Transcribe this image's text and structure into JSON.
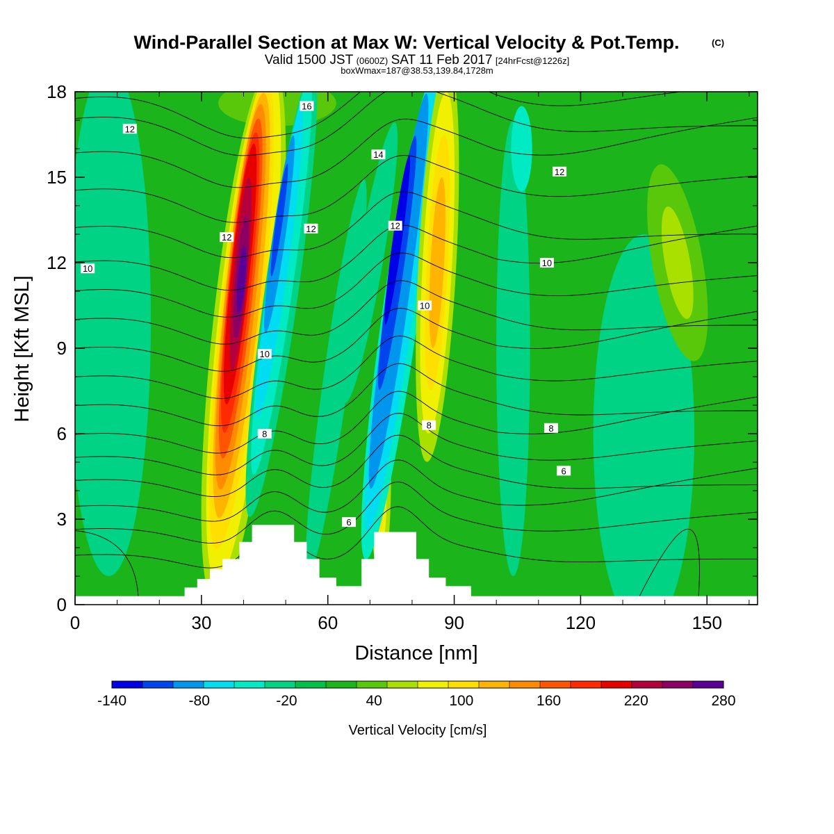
{
  "chart_data": {
    "type": "heatmap",
    "title": "Wind-Parallel Section at Max W: Vertical Velocity & Pot.Temp.",
    "title_mark": "(C)",
    "subtitle": {
      "a": "Valid 1500 JST",
      "b": "(0600Z)",
      "c": "SAT 11 Feb 2017",
      "d": "[24hrFcst@1226z]"
    },
    "info": "boxWmax=187@38.53,139.84,1728m",
    "xlabel": "Distance [nm]",
    "ylabel": "Height [Kft MSL]",
    "xlim": [
      0,
      162
    ],
    "ylim": [
      0,
      18
    ],
    "x_ticks": [
      0,
      30,
      60,
      90,
      120,
      150
    ],
    "y_ticks": [
      0,
      3,
      6,
      9,
      12,
      15,
      18
    ],
    "colorbar": {
      "label": "Vertical Velocity [cm/s]",
      "levels": [
        -140,
        -120,
        -100,
        -80,
        -60,
        -40,
        -20,
        0,
        20,
        40,
        60,
        80,
        100,
        120,
        140,
        160,
        180,
        200,
        220,
        240,
        260,
        280
      ],
      "tick_labels": [
        "-140",
        "-80",
        "-20",
        "40",
        "100",
        "160",
        "220",
        "280"
      ],
      "colors": [
        "#0000e6",
        "#0044ee",
        "#0096ee",
        "#00dcf0",
        "#00eac4",
        "#00d484",
        "#00c048",
        "#1bb41b",
        "#5ac80a",
        "#aae000",
        "#f0f000",
        "#ffdf00",
        "#ffb400",
        "#ff8c00",
        "#ff5500",
        "#ff2a00",
        "#e60000",
        "#b4003c",
        "#8c0064",
        "#5a0096"
      ]
    },
    "series": [
      {
        "name": "Vertical Velocity",
        "units": "cm/s",
        "features": [
          {
            "x": 39,
            "y": 11,
            "peak": 280
          },
          {
            "x": 49,
            "y": 13,
            "peak": -140
          },
          {
            "x": 73,
            "y": 4,
            "peak": 80
          },
          {
            "x": 76,
            "y": 13,
            "peak": -140
          },
          {
            "x": 86,
            "y": 11,
            "peak": 100
          },
          {
            "x": 143,
            "y": 12,
            "peak": 40
          }
        ]
      },
      {
        "name": "Pot.Temp.",
        "contour_labels": [
          {
            "x": 13,
            "y": 16.7,
            "text": "12"
          },
          {
            "x": 55,
            "y": 17.5,
            "text": "16"
          },
          {
            "x": 72,
            "y": 15.8,
            "text": "14"
          },
          {
            "x": 115,
            "y": 15.2,
            "text": "12"
          },
          {
            "x": 36,
            "y": 12.9,
            "text": "12"
          },
          {
            "x": 56,
            "y": 13.2,
            "text": "12"
          },
          {
            "x": 76,
            "y": 13.3,
            "text": "12"
          },
          {
            "x": 3,
            "y": 11.8,
            "text": "10"
          },
          {
            "x": 112,
            "y": 12,
            "text": "10"
          },
          {
            "x": 83,
            "y": 10.5,
            "text": "10"
          },
          {
            "x": 45,
            "y": 8.8,
            "text": "10"
          },
          {
            "x": 45,
            "y": 6,
            "text": "8"
          },
          {
            "x": 84,
            "y": 6.3,
            "text": "8"
          },
          {
            "x": 113,
            "y": 6.2,
            "text": "8"
          },
          {
            "x": 116,
            "y": 4.7,
            "text": "6"
          },
          {
            "x": 65,
            "y": 2.9,
            "text": "6"
          }
        ]
      }
    ],
    "terrain_heights": [
      {
        "x": 0,
        "h": 0.3
      },
      {
        "x": 26,
        "h": 0.3
      },
      {
        "x": 26,
        "h": 0.6
      },
      {
        "x": 29,
        "h": 0.6
      },
      {
        "x": 29,
        "h": 0.9
      },
      {
        "x": 32,
        "h": 0.9
      },
      {
        "x": 32,
        "h": 1.25
      },
      {
        "x": 35,
        "h": 1.25
      },
      {
        "x": 35,
        "h": 1.6
      },
      {
        "x": 39,
        "h": 1.6
      },
      {
        "x": 39,
        "h": 2.2
      },
      {
        "x": 42,
        "h": 2.2
      },
      {
        "x": 42,
        "h": 2.8
      },
      {
        "x": 52,
        "h": 2.8
      },
      {
        "x": 52,
        "h": 2.2
      },
      {
        "x": 55,
        "h": 2.2
      },
      {
        "x": 55,
        "h": 1.6
      },
      {
        "x": 58,
        "h": 1.6
      },
      {
        "x": 58,
        "h": 0.95
      },
      {
        "x": 62,
        "h": 0.95
      },
      {
        "x": 62,
        "h": 0.65
      },
      {
        "x": 68,
        "h": 0.65
      },
      {
        "x": 68,
        "h": 1.6
      },
      {
        "x": 71,
        "h": 1.6
      },
      {
        "x": 71,
        "h": 2.55
      },
      {
        "x": 81,
        "h": 2.55
      },
      {
        "x": 81,
        "h": 1.6
      },
      {
        "x": 84,
        "h": 1.6
      },
      {
        "x": 84,
        "h": 0.95
      },
      {
        "x": 88,
        "h": 0.95
      },
      {
        "x": 88,
        "h": 0.65
      },
      {
        "x": 94,
        "h": 0.65
      },
      {
        "x": 94,
        "h": 0.3
      },
      {
        "x": 162,
        "h": 0.3
      }
    ],
    "grid": false
  }
}
